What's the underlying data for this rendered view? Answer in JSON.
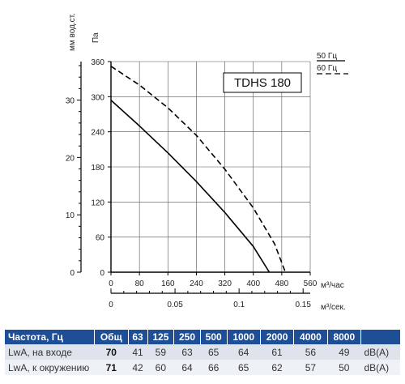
{
  "chart_data": {
    "type": "line",
    "model_label": "TDHS 180",
    "y_unit_left": "мм вод.ст.",
    "y_unit_right": "Па",
    "x_unit": "м³/час",
    "x2_unit": "м³/сек.",
    "x_ticks": [
      "0",
      "80",
      "160",
      "240",
      "320",
      "400",
      "480",
      "560"
    ],
    "x_range": [
      0,
      560
    ],
    "y_pa_ticks": [
      "0",
      "60",
      "120",
      "180",
      "240",
      "300",
      "360"
    ],
    "y_range": [
      0,
      360
    ],
    "y_mm_ticks": [
      "0",
      "10",
      "20",
      "30"
    ],
    "x2_ticks": [
      "0",
      "0.05",
      "0.1",
      "0.15"
    ],
    "grid": true,
    "series": [
      {
        "name": "50 Гц",
        "style": "solid",
        "color": "#000000",
        "x": [
          0,
          80,
          160,
          240,
          320,
          400,
          445
        ],
        "y": [
          294,
          250,
          204,
          155,
          102,
          44,
          0
        ]
      },
      {
        "name": "60 Гц",
        "style": "dashed",
        "color": "#000000",
        "x": [
          0,
          80,
          160,
          240,
          320,
          400,
          460,
          490
        ],
        "y": [
          352,
          320,
          281,
          234,
          176,
          110,
          48,
          0
        ]
      }
    ]
  },
  "table": {
    "headers": [
      "Частота, Гц",
      "Общ",
      "63",
      "125",
      "250",
      "500",
      "1000",
      "2000",
      "4000",
      "8000",
      ""
    ],
    "rows": [
      {
        "label": "LwA, на входе",
        "total": "70",
        "values": [
          "41",
          "59",
          "63",
          "65",
          "64",
          "61",
          "56",
          "49"
        ],
        "unit": "dB(A)"
      },
      {
        "label": "LwA, к окружению",
        "total": "71",
        "values": [
          "42",
          "60",
          "64",
          "66",
          "65",
          "62",
          "57",
          "50"
        ],
        "unit": "dB(A)"
      }
    ]
  },
  "colors": {
    "header_bg": "#1d4e96",
    "row_a": "#dfe4ec",
    "row_b": "#eef1f6"
  }
}
